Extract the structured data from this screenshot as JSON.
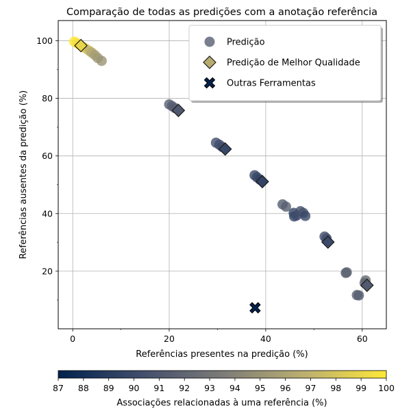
{
  "chart_data": {
    "type": "scatter",
    "title": "Comparação de todas as predições com a anotação referência",
    "xlabel": "Referências presentes na predição (%)",
    "ylabel": "Referências ausentes da predição  (%)",
    "xlim": [
      -3,
      65
    ],
    "ylim": [
      0,
      107
    ],
    "x_ticks": [
      0,
      20,
      40,
      60
    ],
    "y_ticks": [
      20,
      40,
      60,
      80,
      100
    ],
    "grid": true,
    "legend_position": "top-right",
    "legend": [
      {
        "label": "Predição",
        "marker": "circle"
      },
      {
        "label": "Predição de Melhor Qualidade",
        "marker": "diamond"
      },
      {
        "label": "Outras Ferramentas",
        "marker": "x"
      }
    ],
    "colorbar": {
      "label": "Associações relacionadas à uma referência (%)",
      "min": 87,
      "max": 100,
      "ticks": [
        87,
        88,
        89,
        90,
        91,
        92,
        93,
        94,
        95,
        96,
        97,
        98,
        99,
        100
      ],
      "colormap": "cividis"
    },
    "series": [
      {
        "name": "Predição",
        "points": [
          {
            "x": 0.3,
            "y": 99.7,
            "c": 100
          },
          {
            "x": 0.8,
            "y": 99.2,
            "c": 99.6
          },
          {
            "x": 1.3,
            "y": 98.7,
            "c": 99.3
          },
          {
            "x": 2.2,
            "y": 97.8,
            "c": 98.6
          },
          {
            "x": 2.8,
            "y": 97.2,
            "c": 98.2
          },
          {
            "x": 3.5,
            "y": 96.4,
            "c": 96.8
          },
          {
            "x": 4.0,
            "y": 95.8,
            "c": 96.3
          },
          {
            "x": 4.6,
            "y": 95.0,
            "c": 95.6
          },
          {
            "x": 5.2,
            "y": 94.0,
            "c": 95.3
          },
          {
            "x": 6.0,
            "y": 93.0,
            "c": 95.0
          },
          {
            "x": 20.0,
            "y": 77.9,
            "c": 91.5
          },
          {
            "x": 20.6,
            "y": 77.3,
            "c": 91.4
          },
          {
            "x": 21.2,
            "y": 76.6,
            "c": 91.2
          },
          {
            "x": 29.7,
            "y": 64.6,
            "c": 90.3
          },
          {
            "x": 30.4,
            "y": 63.9,
            "c": 90.2
          },
          {
            "x": 31.0,
            "y": 63.1,
            "c": 90.0
          },
          {
            "x": 37.7,
            "y": 53.3,
            "c": 89.9
          },
          {
            "x": 38.2,
            "y": 52.6,
            "c": 89.7
          },
          {
            "x": 38.8,
            "y": 51.8,
            "c": 89.6
          },
          {
            "x": 43.5,
            "y": 43.2,
            "c": 91.3
          },
          {
            "x": 44.2,
            "y": 42.4,
            "c": 91.5
          },
          {
            "x": 45.8,
            "y": 40.2,
            "c": 89.6
          },
          {
            "x": 45.9,
            "y": 39.0,
            "c": 89.8
          },
          {
            "x": 46.4,
            "y": 39.3,
            "c": 90.1
          },
          {
            "x": 47.2,
            "y": 40.8,
            "c": 90.4
          },
          {
            "x": 47.8,
            "y": 40.2,
            "c": 90.6
          },
          {
            "x": 48.2,
            "y": 39.2,
            "c": 89.9
          },
          {
            "x": 52.2,
            "y": 32.0,
            "c": 90.4
          },
          {
            "x": 52.6,
            "y": 31.4,
            "c": 90.2
          },
          {
            "x": 56.6,
            "y": 19.4,
            "c": 91.6
          },
          {
            "x": 56.8,
            "y": 19.6,
            "c": 91.8
          },
          {
            "x": 58.9,
            "y": 11.7,
            "c": 91.6
          },
          {
            "x": 59.3,
            "y": 11.6,
            "c": 91.4
          },
          {
            "x": 60.7,
            "y": 16.8,
            "c": 92.3
          },
          {
            "x": 60.5,
            "y": 15.9,
            "c": 92.0
          }
        ]
      },
      {
        "name": "Predição de Melhor Qualidade",
        "points": [
          {
            "x": 1.7,
            "y": 98.3,
            "c": 98.9
          },
          {
            "x": 21.9,
            "y": 75.8,
            "c": 91.0
          },
          {
            "x": 31.6,
            "y": 62.4,
            "c": 89.8
          },
          {
            "x": 39.3,
            "y": 51.1,
            "c": 89.5
          },
          {
            "x": 52.9,
            "y": 30.1,
            "c": 90.0
          },
          {
            "x": 61.0,
            "y": 15.1,
            "c": 91.2
          }
        ]
      },
      {
        "name": "Outras Ferramentas",
        "points": [
          {
            "x": 37.8,
            "y": 7.3,
            "c": 87.0
          }
        ]
      }
    ]
  }
}
